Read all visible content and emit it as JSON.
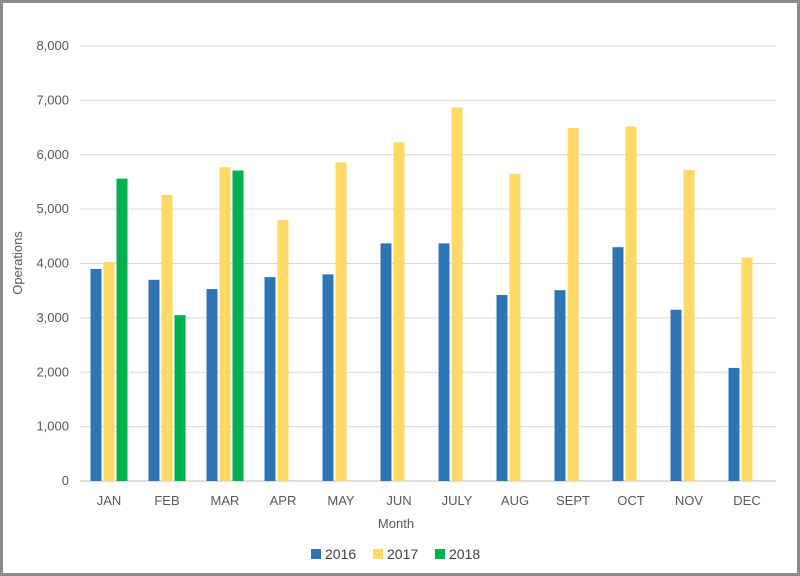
{
  "chart_data": {
    "type": "bar",
    "title": "",
    "xlabel": "Month",
    "ylabel": "Operations",
    "ylim": [
      0,
      8000
    ],
    "yticks": [
      0,
      1000,
      2000,
      3000,
      4000,
      5000,
      6000,
      7000,
      8000
    ],
    "ytick_labels": [
      "0",
      "1,000",
      "2,000",
      "3,000",
      "4,000",
      "5,000",
      "6,000",
      "7,000",
      "8,000"
    ],
    "categories": [
      "JAN",
      "FEB",
      "MAR",
      "APR",
      "MAY",
      "JUN",
      "JULY",
      "AUG",
      "SEPT",
      "OCT",
      "NOV",
      "DEC"
    ],
    "grid": "horizontal",
    "legend": "bottom-center",
    "series": [
      {
        "name": "2016",
        "color": "#2e75b6",
        "values": [
          3900,
          3700,
          3530,
          3750,
          3800,
          4370,
          4370,
          3420,
          3510,
          4300,
          3150,
          2080
        ]
      },
      {
        "name": "2017",
        "color": "#ffd966",
        "values": [
          4030,
          5260,
          5770,
          4800,
          5860,
          6230,
          6870,
          5650,
          6490,
          6520,
          5720,
          4110
        ]
      },
      {
        "name": "2018",
        "color": "#00b050",
        "values": [
          5560,
          3050,
          5710,
          null,
          null,
          null,
          null,
          null,
          null,
          null,
          null,
          null
        ]
      }
    ]
  }
}
